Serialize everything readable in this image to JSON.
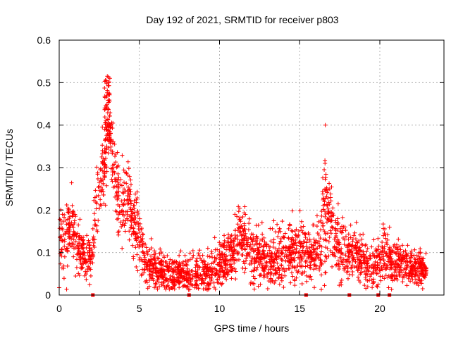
{
  "chart_data": {
    "type": "scatter",
    "title": "Day 192 of 2021, SRMTID for receiver p803",
    "xlabel": "GPS time / hours",
    "ylabel": "SRMTID / TECUs",
    "xlim": [
      0,
      24
    ],
    "ylim": [
      0,
      0.6
    ],
    "xticks": [
      0,
      5,
      10,
      15,
      20
    ],
    "yticks": [
      0,
      0.1,
      0.2,
      0.3,
      0.4,
      0.5,
      0.6
    ],
    "xtick_labels": [
      "0",
      "5",
      "10",
      "15",
      "20"
    ],
    "ytick_labels": [
      "0",
      "0.1",
      "0.2",
      "0.3",
      "0.4",
      "0.5",
      "0.6"
    ],
    "grid": true,
    "marker": "+",
    "color": "#ff0000",
    "x_range_observed": [
      0,
      22.9
    ],
    "peak_value": 0.515,
    "peak_time": 3.0,
    "secondary_peak_value": 0.4,
    "secondary_peak_time": 16.6,
    "gap_markers_x": [
      2.1,
      8.1,
      15.4,
      18.1,
      19.9,
      20.6
    ],
    "profile": [
      {
        "t": 0.0,
        "v": 0.13,
        "s": 0.045
      },
      {
        "t": 0.3,
        "v": 0.12,
        "s": 0.035
      },
      {
        "t": 0.8,
        "v": 0.17,
        "s": 0.035
      },
      {
        "t": 1.2,
        "v": 0.12,
        "s": 0.03
      },
      {
        "t": 1.6,
        "v": 0.08,
        "s": 0.025
      },
      {
        "t": 2.0,
        "v": 0.1,
        "s": 0.03
      },
      {
        "t": 2.3,
        "v": 0.2,
        "s": 0.04
      },
      {
        "t": 2.6,
        "v": 0.27,
        "s": 0.04
      },
      {
        "t": 2.9,
        "v": 0.33,
        "s": 0.06
      },
      {
        "t": 3.1,
        "v": 0.42,
        "s": 0.06
      },
      {
        "t": 3.4,
        "v": 0.3,
        "s": 0.05
      },
      {
        "t": 3.8,
        "v": 0.2,
        "s": 0.045
      },
      {
        "t": 4.2,
        "v": 0.24,
        "s": 0.04
      },
      {
        "t": 4.6,
        "v": 0.18,
        "s": 0.04
      },
      {
        "t": 5.0,
        "v": 0.12,
        "s": 0.035
      },
      {
        "t": 5.5,
        "v": 0.07,
        "s": 0.022
      },
      {
        "t": 6.5,
        "v": 0.05,
        "s": 0.022
      },
      {
        "t": 8.0,
        "v": 0.045,
        "s": 0.02
      },
      {
        "t": 9.5,
        "v": 0.055,
        "s": 0.022
      },
      {
        "t": 10.5,
        "v": 0.08,
        "s": 0.03
      },
      {
        "t": 11.3,
        "v": 0.14,
        "s": 0.035
      },
      {
        "t": 12.0,
        "v": 0.1,
        "s": 0.03
      },
      {
        "t": 13.0,
        "v": 0.08,
        "s": 0.03
      },
      {
        "t": 14.0,
        "v": 0.09,
        "s": 0.03
      },
      {
        "t": 15.0,
        "v": 0.11,
        "s": 0.035
      },
      {
        "t": 15.8,
        "v": 0.09,
        "s": 0.03
      },
      {
        "t": 16.4,
        "v": 0.14,
        "s": 0.05
      },
      {
        "t": 16.8,
        "v": 0.2,
        "s": 0.06
      },
      {
        "t": 17.5,
        "v": 0.1,
        "s": 0.035
      },
      {
        "t": 18.5,
        "v": 0.09,
        "s": 0.03
      },
      {
        "t": 19.5,
        "v": 0.06,
        "s": 0.025
      },
      {
        "t": 20.3,
        "v": 0.09,
        "s": 0.03
      },
      {
        "t": 21.3,
        "v": 0.07,
        "s": 0.022
      },
      {
        "t": 22.9,
        "v": 0.06,
        "s": 0.02
      }
    ]
  }
}
